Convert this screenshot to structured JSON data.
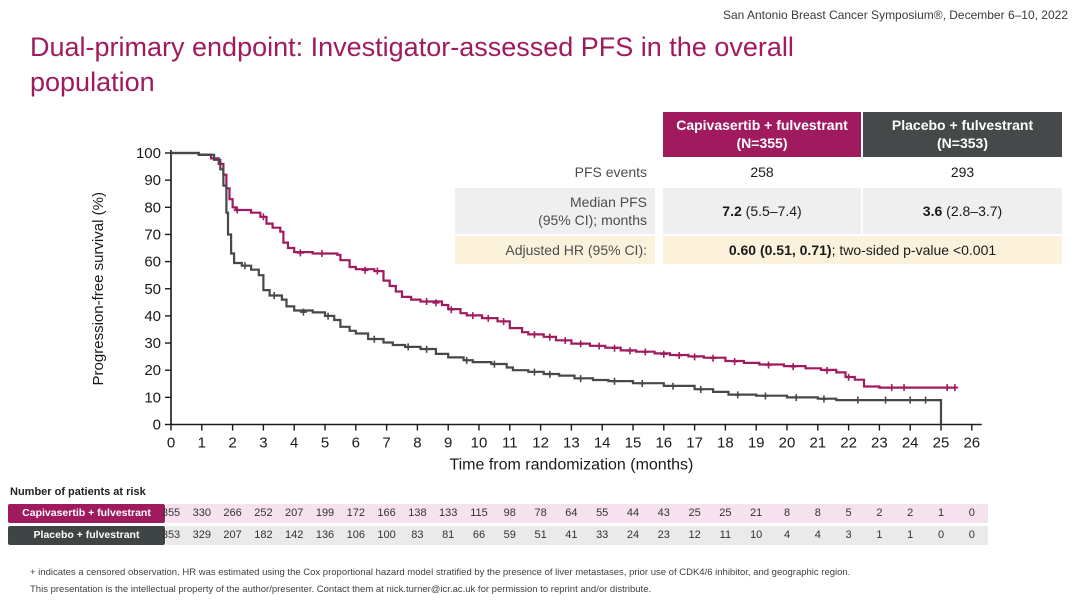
{
  "meta": {
    "symposium": "San Antonio Breast Cancer Symposium®, December 6–10, 2022",
    "title": "Dual-primary endpoint: Investigator-assessed PFS in the overall population"
  },
  "colors": {
    "capivasertib": "#A01A5E",
    "placebo": "#45494A",
    "capivasertib_row_bg": "#F6E2EE",
    "placebo_row_bg": "#EAEAEA",
    "median_row_bg": "#EFEFEF",
    "hr_row_bg": "#FCF2DC"
  },
  "results_table": {
    "columns": [
      {
        "label": "Capivasertib + fulvestrant (N=355)",
        "color": "#A01A5E"
      },
      {
        "label": "Placebo + fulvestrant (N=353)",
        "color": "#45494A"
      }
    ],
    "pfs_events": {
      "label": "PFS events",
      "capivasertib": "258",
      "placebo": "293"
    },
    "median_pfs": {
      "label_line1": "Median PFS",
      "label_line2": "(95% CI); months",
      "capivasertib_bold": "7.2",
      "capivasertib_rest": " (5.5–7.4)",
      "placebo_bold": "3.6",
      "placebo_rest": " (2.8–3.7)"
    },
    "adjusted_hr": {
      "label": "Adjusted HR (95% CI):",
      "value_bold": "0.60 (0.51, 0.71)",
      "value_rest": "; two-sided p-value <0.001"
    }
  },
  "chart_data": {
    "type": "line",
    "subtype": "kaplan-meier-step",
    "xlabel": "Time from randomization (months)",
    "ylabel": "Progression-free survival (%)",
    "xlim": [
      0,
      26
    ],
    "ylim": [
      0,
      100
    ],
    "xticks": [
      0,
      1,
      2,
      3,
      4,
      5,
      6,
      7,
      8,
      9,
      10,
      11,
      12,
      13,
      14,
      15,
      16,
      17,
      18,
      19,
      20,
      21,
      22,
      23,
      24,
      25,
      26
    ],
    "yticks": [
      0,
      10,
      20,
      30,
      40,
      50,
      60,
      70,
      80,
      90,
      100
    ],
    "grid": false,
    "legend": "none (identified in results table and risk table)",
    "censor_marker": "+",
    "series": [
      {
        "name": "Capivasertib + fulvestrant",
        "n": 355,
        "color": "#A01A5E",
        "median_pfs_months": 7.2,
        "points": [
          [
            0,
            100
          ],
          [
            0.9,
            99.4
          ],
          [
            1.3,
            98
          ],
          [
            1.55,
            96
          ],
          [
            1.7,
            92
          ],
          [
            1.8,
            87
          ],
          [
            1.9,
            83
          ],
          [
            2,
            80
          ],
          [
            2.1,
            79
          ],
          [
            2.6,
            78
          ],
          [
            2.9,
            76.5
          ],
          [
            3.1,
            74
          ],
          [
            3.3,
            72.5
          ],
          [
            3.55,
            71
          ],
          [
            3.65,
            67
          ],
          [
            3.8,
            65
          ],
          [
            4,
            63.5
          ],
          [
            4.6,
            63
          ],
          [
            5.4,
            62.5
          ],
          [
            5.5,
            60.5
          ],
          [
            5.8,
            58
          ],
          [
            6,
            57.2
          ],
          [
            6.6,
            56.5
          ],
          [
            6.9,
            53
          ],
          [
            7.1,
            51
          ],
          [
            7.3,
            49
          ],
          [
            7.5,
            47
          ],
          [
            7.8,
            46
          ],
          [
            8.1,
            45.3
          ],
          [
            8.8,
            44
          ],
          [
            9,
            42.5
          ],
          [
            9.4,
            41
          ],
          [
            9.6,
            40.2
          ],
          [
            10.1,
            39.2
          ],
          [
            10.6,
            38
          ],
          [
            11,
            35.5
          ],
          [
            11.4,
            34
          ],
          [
            11.6,
            33.2
          ],
          [
            12.1,
            32.3
          ],
          [
            12.5,
            31
          ],
          [
            13,
            29.8
          ],
          [
            13.6,
            29
          ],
          [
            14.1,
            28.3
          ],
          [
            14.6,
            27.3
          ],
          [
            15.1,
            26.8
          ],
          [
            15.7,
            26.2
          ],
          [
            16.2,
            25.6
          ],
          [
            16.8,
            25.1
          ],
          [
            17.3,
            24.6
          ],
          [
            18,
            23.4
          ],
          [
            18.6,
            22.7
          ],
          [
            19.1,
            22.1
          ],
          [
            19.9,
            21.5
          ],
          [
            20.6,
            20.7
          ],
          [
            21.1,
            20.1
          ],
          [
            21.6,
            19.2
          ],
          [
            21.9,
            17.5
          ],
          [
            22.2,
            16.5
          ],
          [
            22.5,
            14
          ],
          [
            23,
            13.6
          ]
        ],
        "end_x": 25.5,
        "censors": [
          [
            2.15,
            79
          ],
          [
            3,
            76.5
          ],
          [
            4.2,
            63.2
          ],
          [
            4.9,
            63
          ],
          [
            6.3,
            56.8
          ],
          [
            6.7,
            56.5
          ],
          [
            8.3,
            45.3
          ],
          [
            8.6,
            44.8
          ],
          [
            9.1,
            42.3
          ],
          [
            9.8,
            40.1
          ],
          [
            10.3,
            39.1
          ],
          [
            10.8,
            37.9
          ],
          [
            11.8,
            33.1
          ],
          [
            12.3,
            32.2
          ],
          [
            12.8,
            30.9
          ],
          [
            13.3,
            29.7
          ],
          [
            13.9,
            28.9
          ],
          [
            14.4,
            28.1
          ],
          [
            14.9,
            27.1
          ],
          [
            15.4,
            26.7
          ],
          [
            16,
            25.9
          ],
          [
            16.5,
            25.4
          ],
          [
            17,
            24.9
          ],
          [
            17.6,
            24.4
          ],
          [
            18.3,
            23.2
          ],
          [
            19.4,
            21.9
          ],
          [
            20.2,
            21.3
          ],
          [
            21.3,
            19.9
          ],
          [
            22,
            17.4
          ],
          [
            23.4,
            13.6
          ],
          [
            23.8,
            13.6
          ],
          [
            25.2,
            13.6
          ],
          [
            25.45,
            13.6
          ]
        ]
      },
      {
        "name": "Placebo + fulvestrant",
        "n": 353,
        "color": "#45494A",
        "median_pfs_months": 3.6,
        "points": [
          [
            0,
            100
          ],
          [
            0.9,
            99.3
          ],
          [
            1.4,
            97.5
          ],
          [
            1.6,
            94
          ],
          [
            1.7,
            88
          ],
          [
            1.8,
            78
          ],
          [
            1.85,
            70
          ],
          [
            1.95,
            63
          ],
          [
            2.05,
            59.5
          ],
          [
            2.3,
            58.5
          ],
          [
            2.6,
            57
          ],
          [
            2.85,
            55
          ],
          [
            3,
            49.5
          ],
          [
            3.2,
            47.5
          ],
          [
            3.6,
            46
          ],
          [
            3.75,
            43.5
          ],
          [
            4,
            42
          ],
          [
            4.6,
            41.3
          ],
          [
            5,
            40
          ],
          [
            5.3,
            38.5
          ],
          [
            5.5,
            36
          ],
          [
            5.8,
            34.5
          ],
          [
            6,
            33.5
          ],
          [
            6.4,
            31.5
          ],
          [
            6.9,
            30.2
          ],
          [
            7.2,
            29.3
          ],
          [
            7.6,
            28.6
          ],
          [
            8.1,
            27.8
          ],
          [
            8.6,
            26
          ],
          [
            9,
            24.7
          ],
          [
            9.5,
            23.7
          ],
          [
            9.8,
            23
          ],
          [
            10.4,
            22.3
          ],
          [
            10.9,
            21
          ],
          [
            11.1,
            20
          ],
          [
            11.6,
            19.4
          ],
          [
            12.1,
            18.6
          ],
          [
            12.6,
            18
          ],
          [
            13.1,
            17
          ],
          [
            13.7,
            16.4
          ],
          [
            14.2,
            16
          ],
          [
            15,
            15.2
          ],
          [
            16,
            14.2
          ],
          [
            17,
            13
          ],
          [
            17.6,
            12
          ],
          [
            18.1,
            11
          ],
          [
            19,
            10.6
          ],
          [
            20,
            10
          ],
          [
            21,
            9.5
          ],
          [
            21.6,
            9
          ],
          [
            25,
            0
          ]
        ],
        "censors": [
          [
            2.4,
            58.5
          ],
          [
            3.35,
            47.5
          ],
          [
            4.3,
            41.4
          ],
          [
            5.1,
            39.9
          ],
          [
            6.6,
            31.4
          ],
          [
            7.7,
            28.6
          ],
          [
            8.3,
            27.7
          ],
          [
            9.6,
            23.6
          ],
          [
            10.5,
            22.2
          ],
          [
            11.8,
            19.3
          ],
          [
            12.3,
            18.5
          ],
          [
            13.3,
            16.9
          ],
          [
            14.4,
            15.9
          ],
          [
            15.3,
            15.1
          ],
          [
            16.3,
            14.1
          ],
          [
            17.2,
            12.9
          ],
          [
            18.4,
            10.9
          ],
          [
            19.3,
            10.5
          ],
          [
            20.3,
            9.9
          ],
          [
            21.2,
            9.4
          ],
          [
            22.3,
            9
          ],
          [
            23.2,
            9
          ],
          [
            24,
            9
          ],
          [
            24.5,
            9
          ]
        ]
      }
    ]
  },
  "risk_table": {
    "heading": "Number of patients at risk",
    "times": [
      0,
      1,
      2,
      3,
      4,
      5,
      6,
      7,
      8,
      9,
      10,
      11,
      12,
      13,
      14,
      15,
      16,
      17,
      18,
      19,
      20,
      21,
      22,
      23,
      24,
      25,
      26
    ],
    "rows": [
      {
        "label": "Capivasertib + fulvestrant",
        "color": "#A01A5E",
        "bg": "#F6E2EE",
        "counts": [
          355,
          330,
          266,
          252,
          207,
          199,
          172,
          166,
          138,
          133,
          115,
          98,
          78,
          64,
          55,
          44,
          43,
          25,
          25,
          21,
          8,
          8,
          5,
          2,
          2,
          1,
          0
        ]
      },
      {
        "label": "Placebo + fulvestrant",
        "color": "#3F4445",
        "bg": "#EAEAEA",
        "counts": [
          353,
          329,
          207,
          182,
          142,
          136,
          106,
          100,
          83,
          81,
          66,
          59,
          51,
          41,
          33,
          24,
          23,
          12,
          11,
          10,
          4,
          4,
          3,
          1,
          1,
          0,
          0
        ]
      }
    ]
  },
  "footnotes": [
    "+ indicates a censored observation. HR was estimated using the Cox proportional hazard model stratified by the presence of liver metastases, prior use of CDK4/6 inhibitor, and geographic region.",
    "This presentation is the intellectual property of the author/presenter. Contact them at nick.turner@icr.ac.uk for permission to reprint and/or distribute."
  ]
}
